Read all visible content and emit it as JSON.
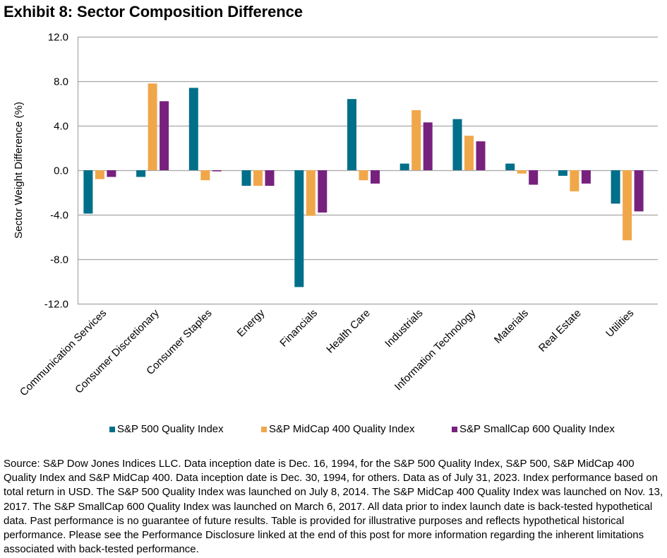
{
  "page": {
    "title": "Exhibit 8: Sector Composition Difference",
    "footnote": "Source: S&P Dow Jones Indices LLC. Data inception date is Dec. 16, 1994, for the S&P 500 Quality Index, S&P 500, S&P MidCap 400 Quality Index and S&P MidCap 400. Data inception date is Dec. 30, 1994, for others. Data as of July 31, 2023. Index performance based on total return in USD. The S&P 500 Quality Index was launched on July 8, 2014. The S&P MidCap 400 Quality Index was launched on Nov. 13, 2017. The S&P SmallCap 600 Quality Index was launched on March 6, 2017. All data prior to index launch date is back-tested hypothetical data. Past performance is no guarantee of future results. Table is provided for illustrative purposes and reflects hypothetical historical performance. Please see the Performance Disclosure linked at the end of this post for more information regarding the inherent limitations associated with back-tested performance."
  },
  "chart_data": {
    "type": "bar",
    "title": "Exhibit 8: Sector Composition Difference",
    "xlabel": "",
    "ylabel": "Sector Weight Difference (%)",
    "ylim": [
      -12,
      12
    ],
    "yticks": [
      12,
      8,
      4,
      0,
      -4,
      -8,
      -12
    ],
    "ytick_labels": [
      "12.0",
      "8.0",
      "4.0",
      "0.0",
      "-4.0",
      "-8.0",
      "-12.0"
    ],
    "grid": true,
    "legend_position": "bottom",
    "categories": [
      "Communication Services",
      "Consumer Discretionary",
      "Consumer Staples",
      "Energy",
      "Financials",
      "Health Care",
      "Industrials",
      "Information Technology",
      "Materials",
      "Real Estate",
      "Utilities"
    ],
    "series": [
      {
        "name": "S&P 500 Quality Index",
        "color": "#006F8A",
        "values": [
          -3.9,
          -0.6,
          7.4,
          -1.4,
          -10.5,
          6.4,
          0.6,
          4.6,
          0.6,
          -0.5,
          -3.0
        ]
      },
      {
        "name": "S&P MidCap 400 Quality Index",
        "color": "#F0A74A",
        "values": [
          -0.8,
          7.8,
          -0.9,
          -1.4,
          -4.1,
          -0.9,
          5.4,
          3.1,
          -0.3,
          -1.9,
          -6.3
        ]
      },
      {
        "name": "S&P SmallCap 600 Quality Index",
        "color": "#77217E",
        "values": [
          -0.6,
          6.2,
          -0.1,
          -1.4,
          -3.8,
          -1.2,
          4.3,
          2.6,
          -1.3,
          -1.2,
          -3.7
        ]
      }
    ]
  }
}
